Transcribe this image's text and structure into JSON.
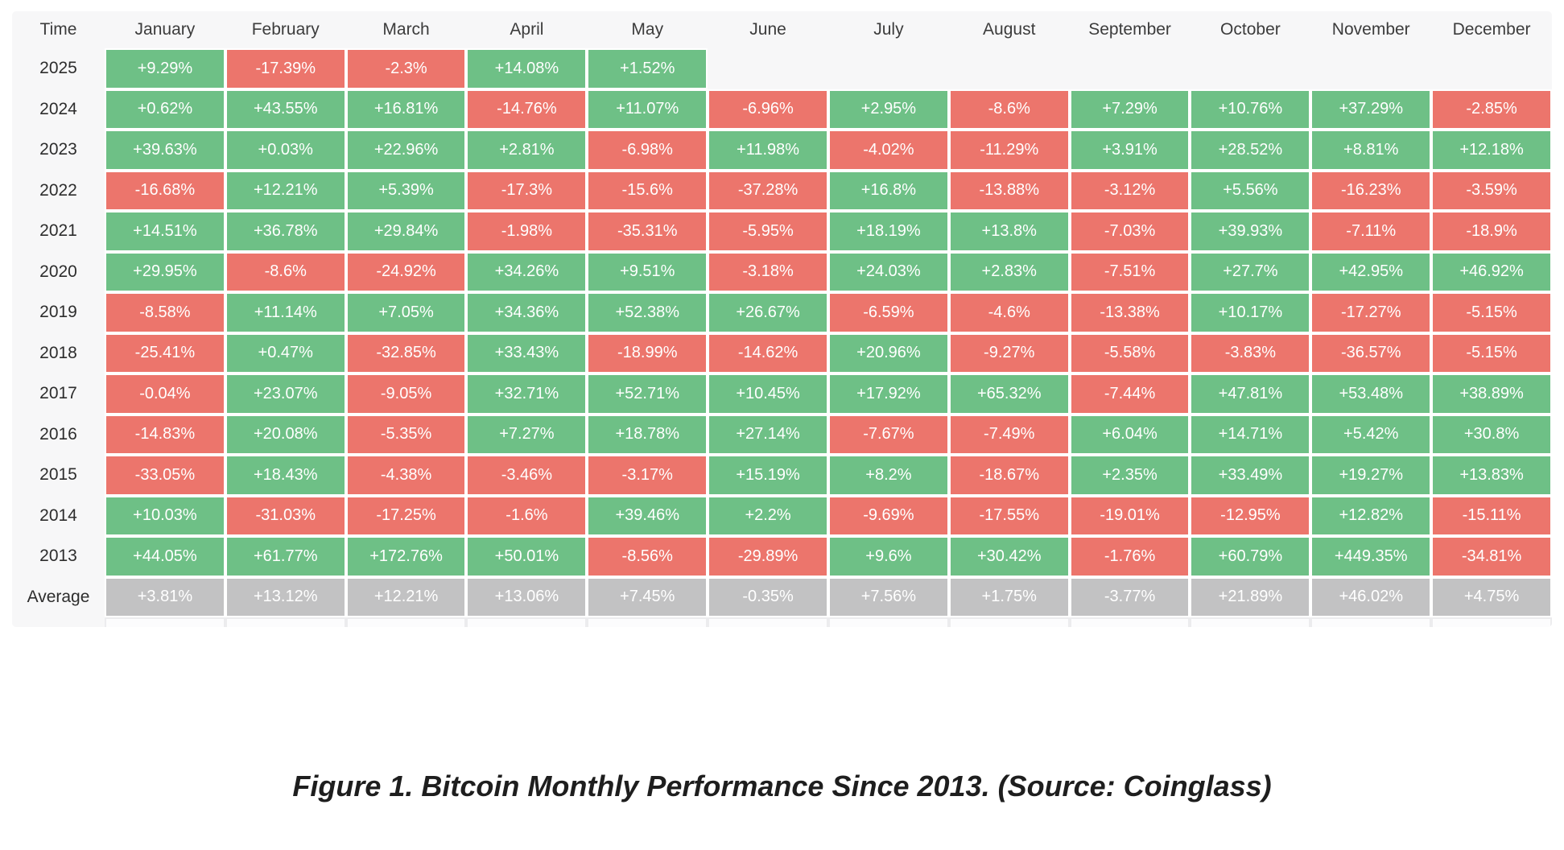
{
  "caption": "Figure 1. Bitcoin Monthly Performance Since 2013. (Source: Coinglass)",
  "colors": {
    "positive": "#6ec086",
    "negative": "#ec756c",
    "average": "#c2c2c3",
    "table_background": "#f7f7f8",
    "header_text": "#3c3c3c",
    "cell_text": "#ffffff"
  },
  "chart_data": {
    "type": "heatmap",
    "title": "Bitcoin Monthly Performance Since 2013",
    "columns": [
      "Time",
      "January",
      "February",
      "March",
      "April",
      "May",
      "June",
      "July",
      "August",
      "September",
      "October",
      "November",
      "December"
    ],
    "color_rule": "green for positive values, red for negative values, gray for Average row",
    "rows": [
      {
        "label": "2025",
        "values": [
          "+9.29%",
          "-17.39%",
          "-2.3%",
          "+14.08%",
          "+1.52%"
        ]
      },
      {
        "label": "2024",
        "values": [
          "+0.62%",
          "+43.55%",
          "+16.81%",
          "-14.76%",
          "+11.07%",
          "-6.96%",
          "+2.95%",
          "-8.6%",
          "+7.29%",
          "+10.76%",
          "+37.29%",
          "-2.85%"
        ]
      },
      {
        "label": "2023",
        "values": [
          "+39.63%",
          "+0.03%",
          "+22.96%",
          "+2.81%",
          "-6.98%",
          "+11.98%",
          "-4.02%",
          "-11.29%",
          "+3.91%",
          "+28.52%",
          "+8.81%",
          "+12.18%"
        ]
      },
      {
        "label": "2022",
        "values": [
          "-16.68%",
          "+12.21%",
          "+5.39%",
          "-17.3%",
          "-15.6%",
          "-37.28%",
          "+16.8%",
          "-13.88%",
          "-3.12%",
          "+5.56%",
          "-16.23%",
          "-3.59%"
        ]
      },
      {
        "label": "2021",
        "values": [
          "+14.51%",
          "+36.78%",
          "+29.84%",
          "-1.98%",
          "-35.31%",
          "-5.95%",
          "+18.19%",
          "+13.8%",
          "-7.03%",
          "+39.93%",
          "-7.11%",
          "-18.9%"
        ]
      },
      {
        "label": "2020",
        "values": [
          "+29.95%",
          "-8.6%",
          "-24.92%",
          "+34.26%",
          "+9.51%",
          "-3.18%",
          "+24.03%",
          "+2.83%",
          "-7.51%",
          "+27.7%",
          "+42.95%",
          "+46.92%"
        ]
      },
      {
        "label": "2019",
        "values": [
          "-8.58%",
          "+11.14%",
          "+7.05%",
          "+34.36%",
          "+52.38%",
          "+26.67%",
          "-6.59%",
          "-4.6%",
          "-13.38%",
          "+10.17%",
          "-17.27%",
          "-5.15%"
        ]
      },
      {
        "label": "2018",
        "values": [
          "-25.41%",
          "+0.47%",
          "-32.85%",
          "+33.43%",
          "-18.99%",
          "-14.62%",
          "+20.96%",
          "-9.27%",
          "-5.58%",
          "-3.83%",
          "-36.57%",
          "-5.15%"
        ]
      },
      {
        "label": "2017",
        "values": [
          "-0.04%",
          "+23.07%",
          "-9.05%",
          "+32.71%",
          "+52.71%",
          "+10.45%",
          "+17.92%",
          "+65.32%",
          "-7.44%",
          "+47.81%",
          "+53.48%",
          "+38.89%"
        ]
      },
      {
        "label": "2016",
        "values": [
          "-14.83%",
          "+20.08%",
          "-5.35%",
          "+7.27%",
          "+18.78%",
          "+27.14%",
          "-7.67%",
          "-7.49%",
          "+6.04%",
          "+14.71%",
          "+5.42%",
          "+30.8%"
        ]
      },
      {
        "label": "2015",
        "values": [
          "-33.05%",
          "+18.43%",
          "-4.38%",
          "-3.46%",
          "-3.17%",
          "+15.19%",
          "+8.2%",
          "-18.67%",
          "+2.35%",
          "+33.49%",
          "+19.27%",
          "+13.83%"
        ]
      },
      {
        "label": "2014",
        "values": [
          "+10.03%",
          "-31.03%",
          "-17.25%",
          "-1.6%",
          "+39.46%",
          "+2.2%",
          "-9.69%",
          "-17.55%",
          "-19.01%",
          "-12.95%",
          "+12.82%",
          "-15.11%"
        ]
      },
      {
        "label": "2013",
        "values": [
          "+44.05%",
          "+61.77%",
          "+172.76%",
          "+50.01%",
          "-8.56%",
          "-29.89%",
          "+9.6%",
          "+30.42%",
          "-1.76%",
          "+60.79%",
          "+449.35%",
          "-34.81%"
        ]
      },
      {
        "label": "Average",
        "type": "average",
        "values": [
          "+3.81%",
          "+13.12%",
          "+12.21%",
          "+13.06%",
          "+7.45%",
          "-0.35%",
          "+7.56%",
          "+1.75%",
          "-3.77%",
          "+21.89%",
          "+46.02%",
          "+4.75%"
        ]
      }
    ]
  }
}
